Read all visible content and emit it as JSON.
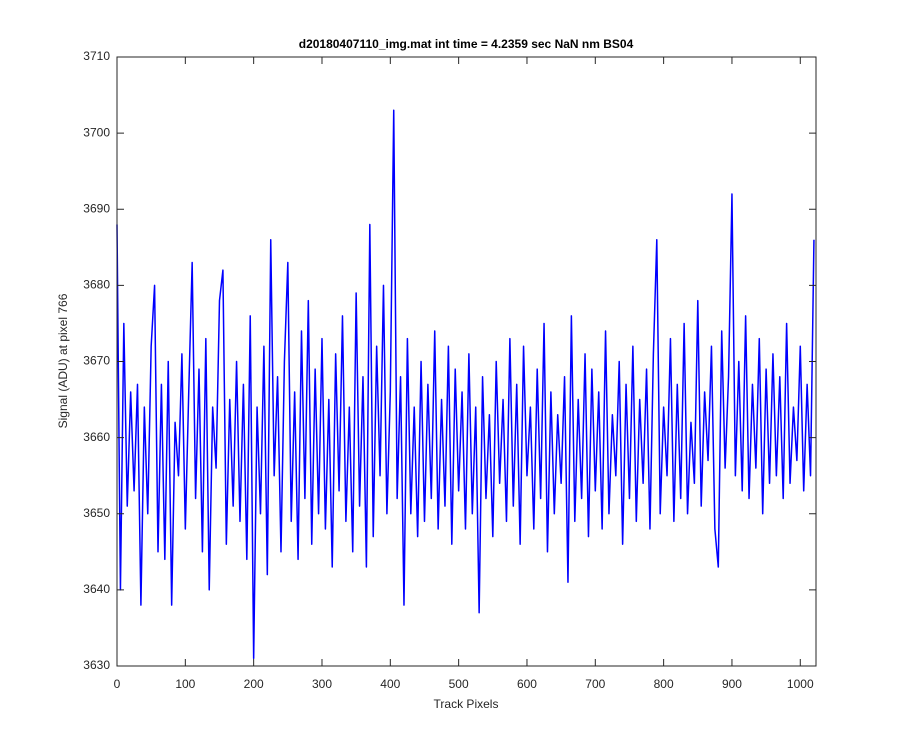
{
  "chart_data": {
    "type": "line",
    "title": "d20180407110_img.mat int time = 4.2359 sec  NaN nm BS04",
    "x_label": "Track Pixels",
    "y_label": "Signal (ADU) at pixel 766",
    "x": [
      0,
      5,
      10,
      15,
      20,
      25,
      30,
      35,
      40,
      45,
      50,
      55,
      60,
      65,
      70,
      75,
      80,
      85,
      90,
      95,
      100,
      105,
      110,
      115,
      120,
      125,
      130,
      135,
      140,
      145,
      150,
      155,
      160,
      165,
      170,
      175,
      180,
      185,
      190,
      195,
      200,
      205,
      210,
      215,
      220,
      225,
      230,
      235,
      240,
      245,
      250,
      255,
      260,
      265,
      270,
      275,
      280,
      285,
      290,
      295,
      300,
      305,
      310,
      315,
      320,
      325,
      330,
      335,
      340,
      345,
      350,
      355,
      360,
      365,
      370,
      375,
      380,
      385,
      390,
      395,
      400,
      405,
      410,
      415,
      420,
      425,
      430,
      435,
      440,
      445,
      450,
      455,
      460,
      465,
      470,
      475,
      480,
      485,
      490,
      495,
      500,
      505,
      510,
      515,
      520,
      525,
      530,
      535,
      540,
      545,
      550,
      555,
      560,
      565,
      570,
      575,
      580,
      585,
      590,
      595,
      600,
      605,
      610,
      615,
      620,
      625,
      630,
      635,
      640,
      645,
      650,
      655,
      660,
      665,
      670,
      675,
      680,
      685,
      690,
      695,
      700,
      705,
      710,
      715,
      720,
      725,
      730,
      735,
      740,
      745,
      750,
      755,
      760,
      765,
      770,
      775,
      780,
      785,
      790,
      795,
      800,
      805,
      810,
      815,
      820,
      825,
      830,
      835,
      840,
      845,
      850,
      855,
      860,
      865,
      870,
      875,
      880,
      885,
      890,
      895,
      900,
      905,
      910,
      915,
      920,
      925,
      930,
      935,
      940,
      945,
      950,
      955,
      960,
      965,
      970,
      975,
      980,
      985,
      990,
      995,
      1000,
      1005,
      1010,
      1015,
      1020
    ],
    "series": [
      {
        "color": "#0000ff",
        "values": [
          3688,
          3640,
          3675,
          3651,
          3666,
          3653,
          3667,
          3638,
          3664,
          3650,
          3672,
          3680,
          3645,
          3667,
          3644,
          3670,
          3638,
          3662,
          3655,
          3671,
          3648,
          3666,
          3683,
          3652,
          3669,
          3645,
          3673,
          3640,
          3664,
          3656,
          3678,
          3682,
          3646,
          3665,
          3651,
          3670,
          3649,
          3667,
          3644,
          3676,
          3631,
          3664,
          3650,
          3672,
          3642,
          3686,
          3655,
          3668,
          3645,
          3670,
          3683,
          3649,
          3666,
          3644,
          3674,
          3652,
          3678,
          3646,
          3669,
          3650,
          3673,
          3648,
          3665,
          3643,
          3671,
          3653,
          3676,
          3649,
          3664,
          3645,
          3679,
          3651,
          3668,
          3643,
          3688,
          3647,
          3672,
          3655,
          3680,
          3650,
          3666,
          3703,
          3652,
          3668,
          3638,
          3673,
          3650,
          3664,
          3647,
          3670,
          3649,
          3667,
          3652,
          3674,
          3648,
          3665,
          3651,
          3672,
          3646,
          3669,
          3653,
          3666,
          3648,
          3671,
          3650,
          3664,
          3637,
          3668,
          3652,
          3663,
          3647,
          3670,
          3654,
          3665,
          3649,
          3673,
          3651,
          3667,
          3646,
          3672,
          3655,
          3664,
          3648,
          3669,
          3652,
          3675,
          3645,
          3666,
          3650,
          3663,
          3654,
          3668,
          3641,
          3676,
          3649,
          3665,
          3652,
          3671,
          3647,
          3669,
          3653,
          3666,
          3648,
          3674,
          3650,
          3663,
          3655,
          3670,
          3646,
          3667,
          3652,
          3672,
          3649,
          3665,
          3654,
          3669,
          3648,
          3671,
          3686,
          3650,
          3664,
          3655,
          3673,
          3649,
          3667,
          3652,
          3675,
          3650,
          3662,
          3654,
          3678,
          3651,
          3666,
          3657,
          3672,
          3648,
          3643,
          3674,
          3656,
          3668,
          3692,
          3655,
          3670,
          3653,
          3676,
          3652,
          3667,
          3656,
          3673,
          3650,
          3669,
          3654,
          3671,
          3655,
          3668,
          3652,
          3675,
          3654,
          3664,
          3657,
          3672,
          3653,
          3667,
          3655,
          3686
        ]
      }
    ],
    "xlim": [
      0,
      1023
    ],
    "ylim": [
      3630,
      3710
    ],
    "xticks": [
      0,
      100,
      200,
      300,
      400,
      500,
      600,
      700,
      800,
      900,
      1000
    ],
    "yticks": [
      3630,
      3640,
      3650,
      3660,
      3670,
      3680,
      3690,
      3700,
      3710
    ]
  }
}
